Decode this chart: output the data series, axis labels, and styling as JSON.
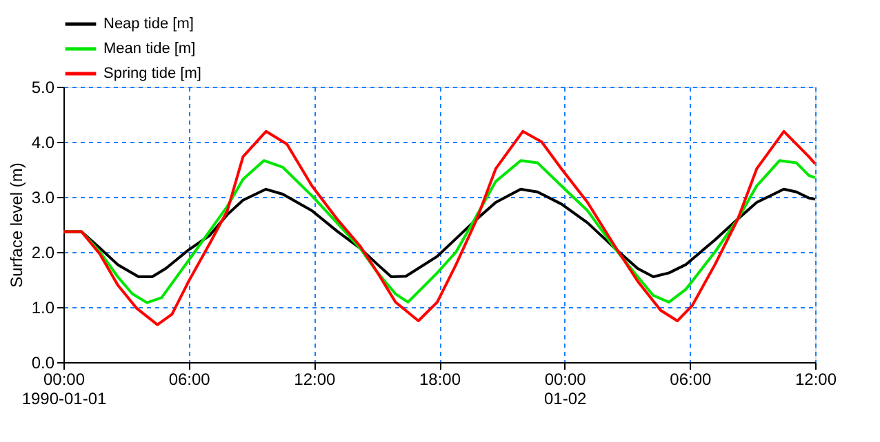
{
  "chart_data": {
    "type": "line",
    "ylabel": "Surface level (m)",
    "xlim": [
      "1990-01-01T00:00",
      "1990-01-02T12:00"
    ],
    "ylim": [
      0,
      5
    ],
    "xticks": [
      {
        "value": "1990-01-01T00:00",
        "label": "00:00\n1990-01-01"
      },
      {
        "value": "1990-01-01T06:00",
        "label": "06:00"
      },
      {
        "value": "1990-01-01T12:00",
        "label": "12:00"
      },
      {
        "value": "1990-01-01T18:00",
        "label": "18:00"
      },
      {
        "value": "1990-01-02T00:00",
        "label": "00:00\n01-02"
      },
      {
        "value": "1990-01-02T06:00",
        "label": "06:00"
      },
      {
        "value": "1990-01-02T12:00",
        "label": "12:00"
      }
    ],
    "yticks": [
      {
        "value": 0,
        "label": "0.0"
      },
      {
        "value": 1,
        "label": "1.0"
      },
      {
        "value": 2,
        "label": "2.0"
      },
      {
        "value": 3,
        "label": "3.0"
      },
      {
        "value": 4,
        "label": "4.0"
      },
      {
        "value": 5,
        "label": "5.0"
      }
    ],
    "grid": true,
    "legend": "top left",
    "marker": "none",
    "line_style": "solid",
    "series": [
      {
        "name": "Neap tide [m]",
        "color": "#000000",
        "x": [
          "1990-01-01T00:00",
          "1990-01-01T00:52",
          "1990-01-01T01:45",
          "1990-01-01T02:36",
          "1990-01-01T03:36",
          "1990-01-01T04:15",
          "1990-01-01T04:54",
          "1990-01-01T06:00",
          "1990-01-01T07:00",
          "1990-01-01T07:51",
          "1990-01-01T08:36",
          "1990-01-01T09:42",
          "1990-01-01T10:30",
          "1990-01-01T11:54",
          "1990-01-01T13:06",
          "1990-01-01T14:12",
          "1990-01-01T15:03",
          "1990-01-01T15:42",
          "1990-01-01T16:24",
          "1990-01-01T17:54",
          "1990-01-01T19:36",
          "1990-01-01T20:42",
          "1990-01-01T21:54",
          "1990-01-01T22:42",
          "1990-01-01T23:51",
          "1990-01-02T01:06",
          "1990-01-02T02:24",
          "1990-01-02T03:30",
          "1990-01-02T04:15",
          "1990-01-02T05:00",
          "1990-01-02T05:48",
          "1990-01-02T07:12",
          "1990-01-02T08:18",
          "1990-01-02T09:12",
          "1990-01-02T10:30",
          "1990-01-02T11:06",
          "1990-01-02T11:42",
          "1990-01-02T12:00"
        ],
        "values": [
          2.37,
          2.37,
          2.07,
          1.77,
          1.55,
          1.55,
          1.7,
          2.04,
          2.3,
          2.68,
          2.94,
          3.14,
          3.05,
          2.75,
          2.38,
          2.07,
          1.77,
          1.55,
          1.56,
          1.92,
          2.53,
          2.9,
          3.14,
          3.09,
          2.87,
          2.53,
          2.07,
          1.7,
          1.55,
          1.62,
          1.77,
          2.22,
          2.6,
          2.9,
          3.14,
          3.09,
          2.98,
          2.96
        ]
      },
      {
        "name": "Mean tide [m]",
        "color": "#00e600",
        "x": [
          "1990-01-01T00:00",
          "1990-01-01T00:52",
          "1990-01-01T01:45",
          "1990-01-01T02:36",
          "1990-01-01T03:18",
          "1990-01-01T04:00",
          "1990-01-01T04:42",
          "1990-01-01T06:00",
          "1990-01-01T07:00",
          "1990-01-01T07:51",
          "1990-01-01T08:36",
          "1990-01-01T09:36",
          "1990-01-01T10:30",
          "1990-01-01T11:54",
          "1990-01-01T13:06",
          "1990-01-01T14:12",
          "1990-01-01T15:03",
          "1990-01-01T15:54",
          "1990-01-01T16:30",
          "1990-01-01T17:54",
          "1990-01-01T18:48",
          "1990-01-01T19:36",
          "1990-01-01T20:42",
          "1990-01-01T21:54",
          "1990-01-01T22:42",
          "1990-01-01T23:51",
          "1990-01-02T01:06",
          "1990-01-02T02:24",
          "1990-01-02T03:30",
          "1990-01-02T04:15",
          "1990-01-02T05:00",
          "1990-01-02T05:48",
          "1990-01-02T07:12",
          "1990-01-02T08:18",
          "1990-01-02T09:12",
          "1990-01-02T10:18",
          "1990-01-02T11:06",
          "1990-01-02T11:42",
          "1990-01-02T12:00"
        ],
        "values": [
          2.37,
          2.37,
          2.0,
          1.55,
          1.24,
          1.08,
          1.17,
          1.85,
          2.38,
          2.83,
          3.32,
          3.66,
          3.54,
          3.02,
          2.53,
          2.07,
          1.62,
          1.24,
          1.09,
          1.62,
          2.0,
          2.53,
          3.28,
          3.66,
          3.62,
          3.2,
          2.75,
          2.07,
          1.55,
          1.21,
          1.09,
          1.32,
          2.0,
          2.6,
          3.2,
          3.66,
          3.62,
          3.39,
          3.35
        ]
      },
      {
        "name": "Spring tide [m]",
        "color": "#ff0000",
        "x": [
          "1990-01-01T00:00",
          "1990-01-01T00:52",
          "1990-01-01T01:45",
          "1990-01-01T02:36",
          "1990-01-01T03:30",
          "1990-01-01T04:30",
          "1990-01-01T05:12",
          "1990-01-01T06:00",
          "1990-01-01T07:00",
          "1990-01-01T07:51",
          "1990-01-01T08:36",
          "1990-01-01T09:42",
          "1990-01-01T10:42",
          "1990-01-01T11:54",
          "1990-01-01T13:06",
          "1990-01-01T14:12",
          "1990-01-01T15:03",
          "1990-01-01T15:54",
          "1990-01-01T17:00",
          "1990-01-01T17:54",
          "1990-01-01T18:48",
          "1990-01-01T19:48",
          "1990-01-01T20:42",
          "1990-01-01T22:00",
          "1990-01-01T22:54",
          "1990-01-01T23:51",
          "1990-01-02T01:06",
          "1990-01-02T02:24",
          "1990-01-02T03:30",
          "1990-01-02T04:36",
          "1990-01-02T05:24",
          "1990-01-02T06:06",
          "1990-01-02T07:12",
          "1990-01-02T08:18",
          "1990-01-02T09:12",
          "1990-01-02T10:30",
          "1990-01-02T11:42",
          "1990-01-02T12:00"
        ],
        "values": [
          2.37,
          2.37,
          1.96,
          1.4,
          0.98,
          0.68,
          0.87,
          1.47,
          2.15,
          2.75,
          3.73,
          4.19,
          3.96,
          3.2,
          2.6,
          2.11,
          1.62,
          1.09,
          0.75,
          1.09,
          1.77,
          2.6,
          3.51,
          4.19,
          4.0,
          3.51,
          2.9,
          2.11,
          1.47,
          0.94,
          0.75,
          1.02,
          1.77,
          2.6,
          3.51,
          4.19,
          3.73,
          3.6
        ]
      }
    ]
  }
}
